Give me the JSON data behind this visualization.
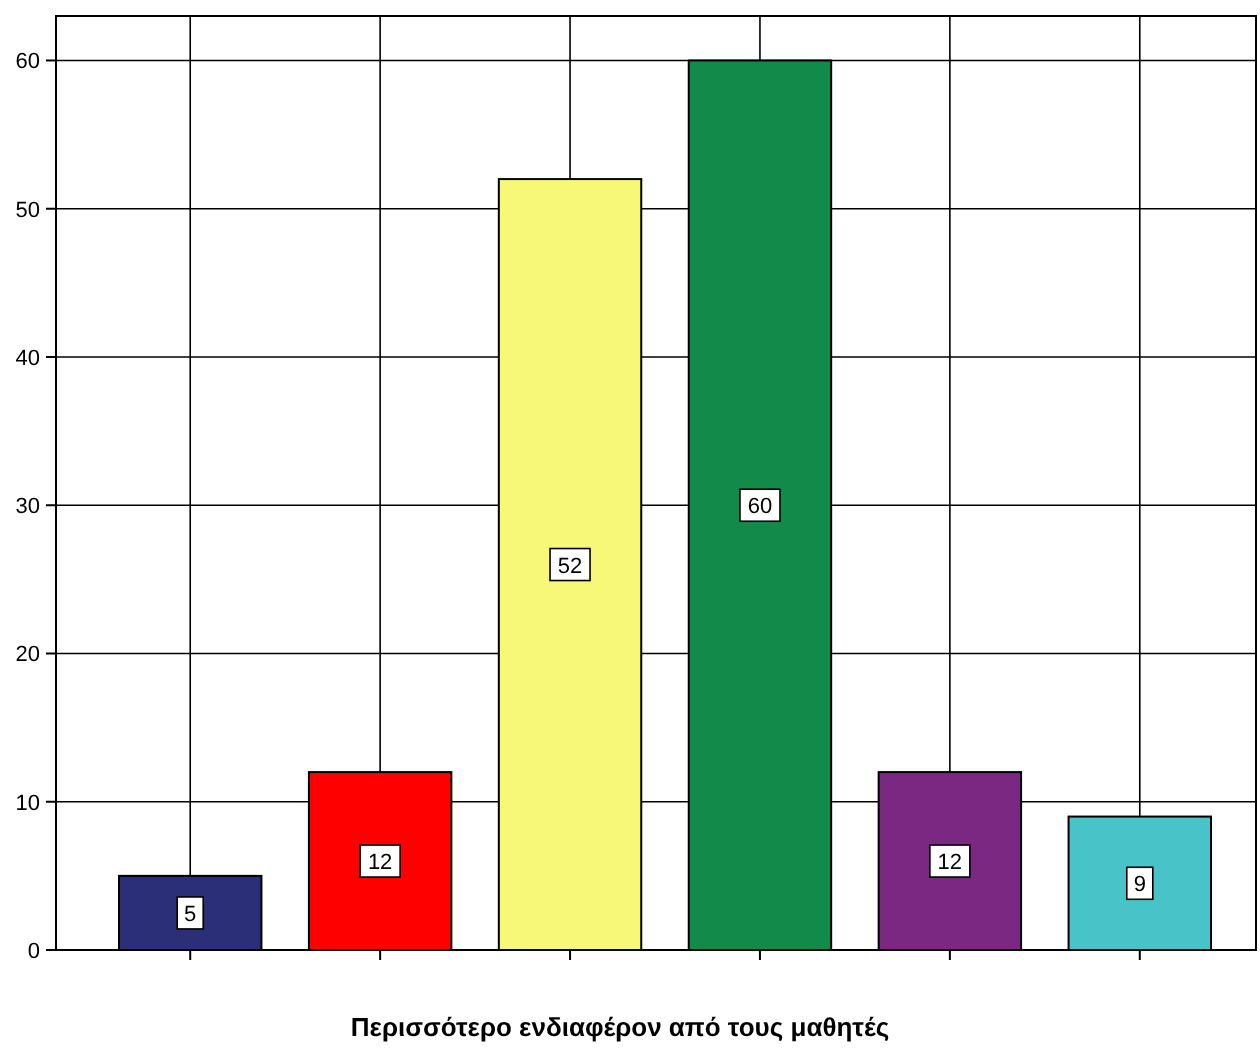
{
  "chart_data": {
    "type": "bar",
    "xlabel": "Περισσότερο ενδιαφέρον από τους μαθητές",
    "categories": [
      null,
      null,
      null,
      null,
      null,
      null
    ],
    "values": [
      5,
      12,
      52,
      60,
      12,
      9
    ],
    "colors": [
      "#2b2f77",
      "#ff0000",
      "#f8f878",
      "#128b4a",
      "#7b2882",
      "#48c3c8"
    ],
    "ylim": [
      0,
      63
    ],
    "yticks": [
      0,
      10,
      20,
      30,
      40,
      50,
      60
    ],
    "grid": true,
    "data_labels": true
  }
}
